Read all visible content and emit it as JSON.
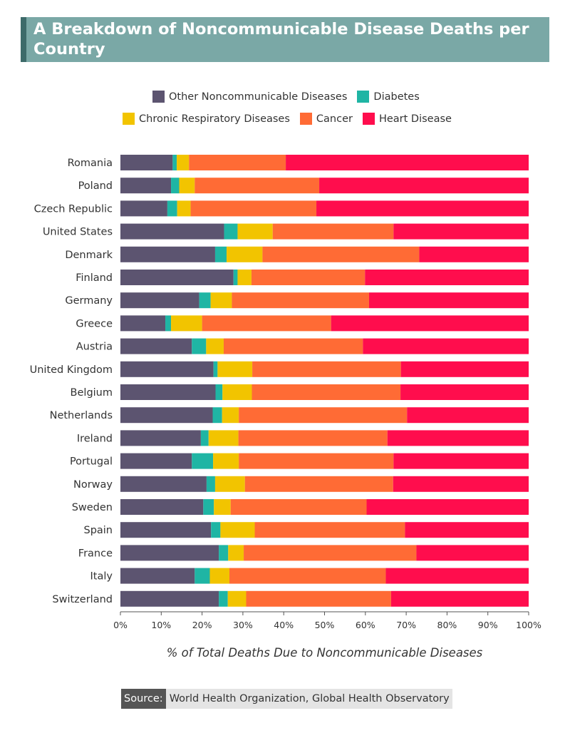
{
  "title": "A Breakdown of Noncommunicable Disease Deaths per Country",
  "legend": {
    "row1": [
      {
        "label": "Other Noncommunicable Diseases",
        "color": "#5c5470"
      },
      {
        "label": "Diabetes",
        "color": "#1fb5a4"
      }
    ],
    "row2": [
      {
        "label": "Chronic Respiratory Diseases",
        "color": "#f2c400"
      },
      {
        "label": "Cancer",
        "color": "#ff6b35"
      },
      {
        "label": "Heart Disease",
        "color": "#ff0d4d"
      }
    ]
  },
  "source": {
    "tag": "Source:",
    "text": "World Health Organization, Global Health Observatory"
  },
  "chart_data": {
    "type": "bar",
    "orientation": "horizontal",
    "stacked": true,
    "title": "A Breakdown of Noncommunicable Disease Deaths per Country",
    "xlabel": "% of Total Deaths Due to Noncommunicable Diseases",
    "ylabel": "",
    "xlim": [
      0,
      100
    ],
    "xticks": [
      "0%",
      "10%",
      "20%",
      "30%",
      "40%",
      "50%",
      "60%",
      "70%",
      "80%",
      "90%",
      "100%"
    ],
    "categories": [
      "Romania",
      "Poland",
      "Czech Republic",
      "United States",
      "Denmark",
      "Finland",
      "Germany",
      "Greece",
      "Austria",
      "United Kingdom",
      "Belgium",
      "Netherlands",
      "Ireland",
      "Portugal",
      "Norway",
      "Sweden",
      "Spain",
      "France",
      "Italy",
      "Switzerland"
    ],
    "series": [
      {
        "name": "Other Noncommunicable Diseases",
        "color": "#5c5470",
        "values": [
          12.8,
          12.4,
          11.5,
          25.4,
          23.2,
          27.7,
          19.3,
          11.0,
          17.5,
          22.8,
          23.3,
          22.6,
          19.7,
          17.5,
          21.1,
          20.3,
          22.2,
          24.1,
          18.2,
          24.1
        ]
      },
      {
        "name": "Diabetes",
        "color": "#1fb5a4",
        "values": [
          1.0,
          2.0,
          2.4,
          3.3,
          2.8,
          1.0,
          2.8,
          1.4,
          3.5,
          1.0,
          1.7,
          2.3,
          1.9,
          5.2,
          2.1,
          2.6,
          2.3,
          2.3,
          3.7,
          2.2
        ]
      },
      {
        "name": "Chronic Respiratory Diseases",
        "color": "#f2c400",
        "values": [
          3.0,
          3.8,
          3.3,
          8.6,
          8.8,
          3.4,
          5.2,
          7.6,
          4.3,
          8.5,
          7.2,
          4.1,
          7.3,
          6.3,
          7.3,
          4.1,
          8.4,
          3.8,
          4.8,
          4.5
        ]
      },
      {
        "name": "Cancer",
        "color": "#ff6b35",
        "values": [
          23.7,
          30.5,
          30.8,
          29.6,
          38.4,
          27.8,
          33.6,
          31.6,
          34.1,
          36.4,
          36.4,
          41.2,
          36.5,
          37.9,
          36.3,
          33.3,
          36.8,
          42.3,
          38.3,
          35.5
        ]
      },
      {
        "name": "Heart Disease",
        "color": "#ff0d4d",
        "values": [
          59.5,
          51.3,
          52.0,
          33.1,
          26.8,
          40.1,
          39.1,
          48.4,
          40.6,
          31.3,
          31.4,
          29.8,
          34.6,
          33.1,
          33.2,
          39.7,
          30.3,
          27.5,
          35.0,
          33.7
        ]
      }
    ]
  }
}
